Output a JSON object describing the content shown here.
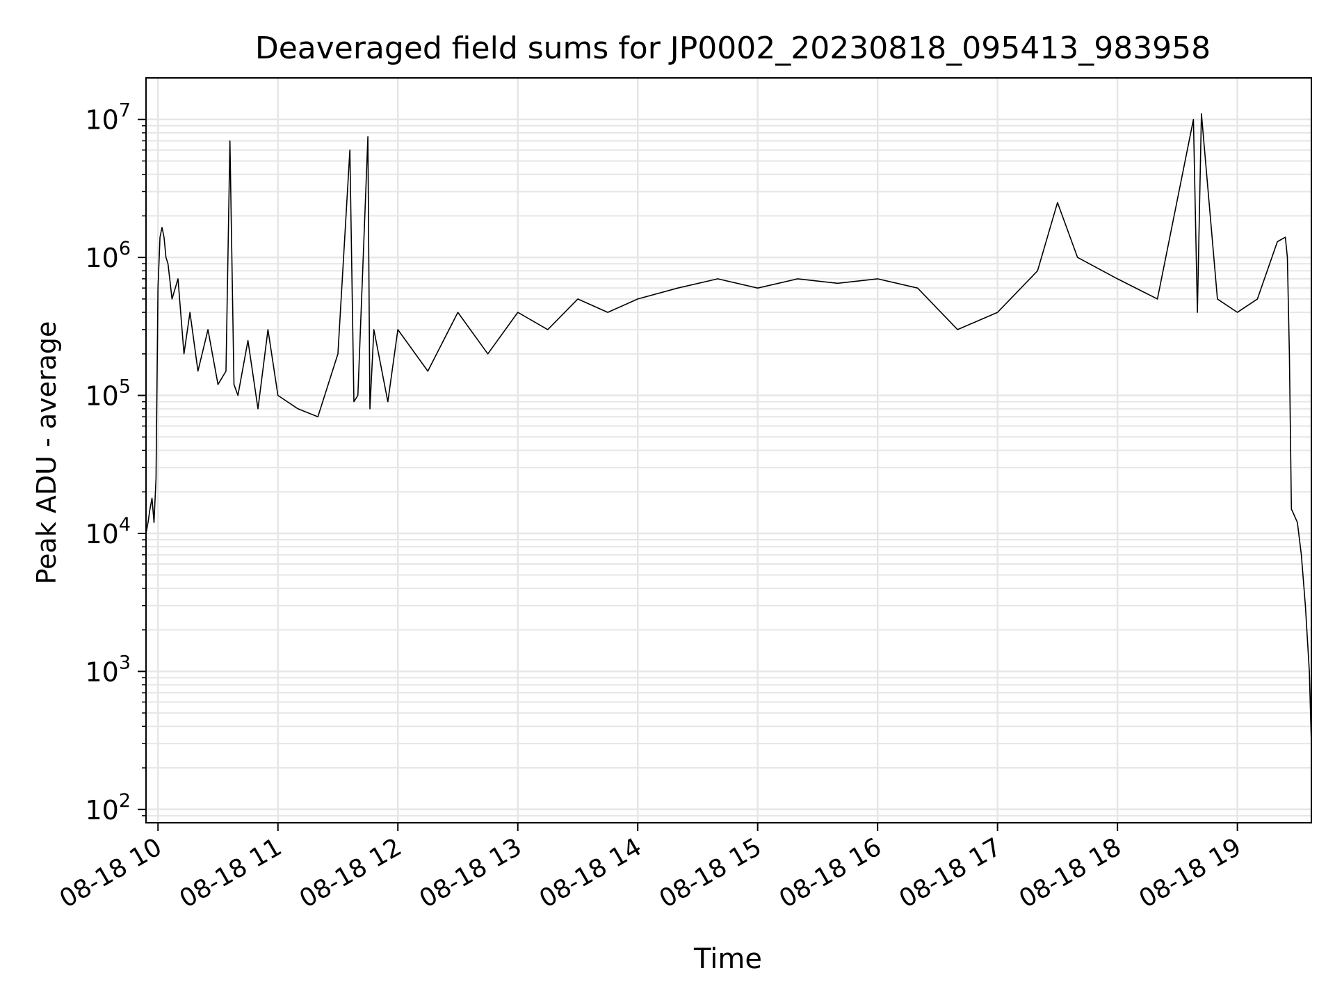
{
  "chart_data": {
    "type": "line",
    "title": "Deaveraged field sums for JP0002_20230818_095413_983958",
    "xlabel": "Time",
    "ylabel": "Peak ADU - average",
    "yscale": "log",
    "ylim": [
      80,
      20000000
    ],
    "xlim": [
      "2023-08-18 09:54",
      "2023-08-18 19:37"
    ],
    "grid": true,
    "x_ticks": [
      {
        "value": "2023-08-18 10:00",
        "label": "08-18 10"
      },
      {
        "value": "2023-08-18 11:00",
        "label": "08-18 11"
      },
      {
        "value": "2023-08-18 12:00",
        "label": "08-18 12"
      },
      {
        "value": "2023-08-18 13:00",
        "label": "08-18 13"
      },
      {
        "value": "2023-08-18 14:00",
        "label": "08-18 14"
      },
      {
        "value": "2023-08-18 15:00",
        "label": "08-18 15"
      },
      {
        "value": "2023-08-18 16:00",
        "label": "08-18 16"
      },
      {
        "value": "2023-08-18 17:00",
        "label": "08-18 17"
      },
      {
        "value": "2023-08-18 18:00",
        "label": "08-18 18"
      },
      {
        "value": "2023-08-18 19:00",
        "label": "08-18 19"
      }
    ],
    "y_ticks": [
      {
        "value": 100,
        "base": "10",
        "exp": "2"
      },
      {
        "value": 1000,
        "base": "10",
        "exp": "3"
      },
      {
        "value": 10000,
        "base": "10",
        "exp": "4"
      },
      {
        "value": 100000,
        "base": "10",
        "exp": "5"
      },
      {
        "value": 1000000,
        "base": "10",
        "exp": "6"
      },
      {
        "value": 10000000,
        "base": "10",
        "exp": "7"
      }
    ],
    "colors": {
      "line": "#000000",
      "grid": "#e6e6e6",
      "axes": "#000000"
    },
    "series": [
      {
        "x": [
          "2023-08-18 09:54",
          "2023-08-18 09:55",
          "2023-08-18 09:56",
          "2023-08-18 09:57",
          "2023-08-18 09:58",
          "2023-08-18 09:59",
          "2023-08-18 10:00",
          "2023-08-18 10:01",
          "2023-08-18 10:02",
          "2023-08-18 10:03",
          "2023-08-18 10:04",
          "2023-08-18 10:05",
          "2023-08-18 10:07",
          "2023-08-18 10:10",
          "2023-08-18 10:13",
          "2023-08-18 10:16",
          "2023-08-18 10:20",
          "2023-08-18 10:25",
          "2023-08-18 10:30",
          "2023-08-18 10:34",
          "2023-08-18 10:36",
          "2023-08-18 10:38",
          "2023-08-18 10:40",
          "2023-08-18 10:45",
          "2023-08-18 10:50",
          "2023-08-18 10:55",
          "2023-08-18 11:00",
          "2023-08-18 11:10",
          "2023-08-18 11:20",
          "2023-08-18 11:30",
          "2023-08-18 11:36",
          "2023-08-18 11:38",
          "2023-08-18 11:40",
          "2023-08-18 11:45",
          "2023-08-18 11:46",
          "2023-08-18 11:48",
          "2023-08-18 11:55",
          "2023-08-18 12:00",
          "2023-08-18 12:15",
          "2023-08-18 12:30",
          "2023-08-18 12:45",
          "2023-08-18 13:00",
          "2023-08-18 13:15",
          "2023-08-18 13:30",
          "2023-08-18 13:45",
          "2023-08-18 14:00",
          "2023-08-18 14:20",
          "2023-08-18 14:40",
          "2023-08-18 15:00",
          "2023-08-18 15:20",
          "2023-08-18 15:40",
          "2023-08-18 16:00",
          "2023-08-18 16:20",
          "2023-08-18 16:40",
          "2023-08-18 17:00",
          "2023-08-18 17:20",
          "2023-08-18 17:30",
          "2023-08-18 17:40",
          "2023-08-18 18:00",
          "2023-08-18 18:20",
          "2023-08-18 18:38",
          "2023-08-18 18:40",
          "2023-08-18 18:42",
          "2023-08-18 18:50",
          "2023-08-18 19:00",
          "2023-08-18 19:10",
          "2023-08-18 19:20",
          "2023-08-18 19:24",
          "2023-08-18 19:25",
          "2023-08-18 19:26",
          "2023-08-18 19:27",
          "2023-08-18 19:28",
          "2023-08-18 19:30",
          "2023-08-18 19:32",
          "2023-08-18 19:34",
          "2023-08-18 19:36",
          "2023-08-18 19:37"
        ],
        "y": [
          10000,
          12000,
          15000,
          18000,
          12000,
          25000,
          600000,
          1400000,
          1650000,
          1400000,
          1000000,
          900000,
          500000,
          700000,
          200000,
          400000,
          150000,
          300000,
          120000,
          150000,
          7000000,
          120000,
          100000,
          250000,
          80000,
          300000,
          100000,
          80000,
          70000,
          200000,
          6000000,
          90000,
          100000,
          7500000,
          80000,
          300000,
          90000,
          300000,
          150000,
          400000,
          200000,
          400000,
          300000,
          500000,
          400000,
          500000,
          600000,
          700000,
          600000,
          700000,
          650000,
          700000,
          600000,
          300000,
          400000,
          800000,
          2500000,
          1000000,
          700000,
          500000,
          10000000,
          400000,
          11000000,
          500000,
          400000,
          500000,
          1300000,
          1400000,
          1000000,
          200000,
          15000,
          14000,
          12000,
          7000,
          3000,
          1000,
          300
        ]
      }
    ]
  }
}
